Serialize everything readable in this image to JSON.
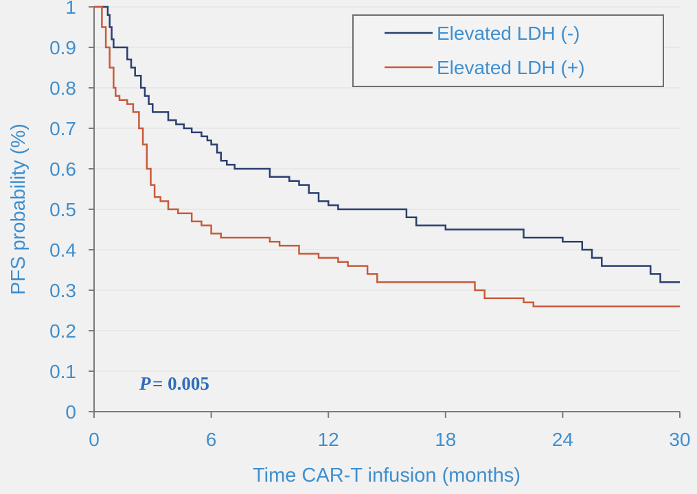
{
  "chart_data": {
    "type": "line",
    "xlabel": "Time CAR-T infusion (months)",
    "ylabel": "PFS probability (%)",
    "xlim": [
      0,
      30
    ],
    "ylim": [
      0,
      1
    ],
    "xticks": [
      "0",
      "6",
      "12",
      "18",
      "24",
      "30"
    ],
    "yticks": [
      "0",
      "0.1",
      "0.2",
      "0.3",
      "0.4",
      "0.5",
      "0.6",
      "0.7",
      "0.8",
      "0.9",
      "1"
    ],
    "annotation_p": "P",
    "annotation_value": "= 0.005",
    "legend_position": "top-right",
    "series": [
      {
        "name": "Elevated LDH (-)",
        "color": "#2a3f6e",
        "x": [
          0,
          0.5,
          0.7,
          0.8,
          0.9,
          1.0,
          1.1,
          1.2,
          1.7,
          1.9,
          2.1,
          2.4,
          2.6,
          2.8,
          3.0,
          3.3,
          3.8,
          4.2,
          4.6,
          5.0,
          5.5,
          5.8,
          6.0,
          6.3,
          6.5,
          6.8,
          7.2,
          8.0,
          9.0,
          10.0,
          10.5,
          11.0,
          11.5,
          12.0,
          12.5,
          13.5,
          14.5,
          15.5,
          16.0,
          16.5,
          18.0,
          19.0,
          20.0,
          21.5,
          22.0,
          23.0,
          24.0,
          25.0,
          25.5,
          26.0,
          27.5,
          28.5,
          29.0,
          30.0
        ],
        "y": [
          1.0,
          1.0,
          0.98,
          0.95,
          0.92,
          0.9,
          0.9,
          0.9,
          0.87,
          0.85,
          0.83,
          0.8,
          0.78,
          0.76,
          0.74,
          0.74,
          0.72,
          0.71,
          0.7,
          0.69,
          0.68,
          0.67,
          0.66,
          0.64,
          0.62,
          0.61,
          0.6,
          0.6,
          0.58,
          0.57,
          0.56,
          0.54,
          0.52,
          0.51,
          0.5,
          0.5,
          0.5,
          0.5,
          0.48,
          0.46,
          0.45,
          0.45,
          0.45,
          0.45,
          0.43,
          0.43,
          0.42,
          0.4,
          0.38,
          0.36,
          0.36,
          0.34,
          0.32,
          0.32
        ]
      },
      {
        "name": "Elevated LDH (+)",
        "color": "#c85a3a",
        "x": [
          0,
          0.4,
          0.6,
          0.8,
          1.0,
          1.1,
          1.3,
          1.7,
          2.0,
          2.3,
          2.5,
          2.7,
          2.9,
          3.1,
          3.4,
          3.8,
          4.3,
          5.0,
          5.5,
          6.0,
          6.5,
          7.0,
          8.0,
          9.0,
          9.5,
          10.5,
          11.5,
          12.0,
          12.5,
          13.0,
          14.0,
          14.5,
          15.0,
          17.0,
          19.0,
          19.5,
          20.0,
          21.0,
          22.0,
          22.5,
          24.0,
          26.0,
          28.0,
          30.0
        ],
        "y": [
          1.0,
          0.95,
          0.9,
          0.85,
          0.8,
          0.78,
          0.77,
          0.76,
          0.74,
          0.7,
          0.66,
          0.6,
          0.56,
          0.53,
          0.52,
          0.5,
          0.49,
          0.47,
          0.46,
          0.44,
          0.43,
          0.43,
          0.43,
          0.42,
          0.41,
          0.39,
          0.38,
          0.38,
          0.37,
          0.36,
          0.34,
          0.32,
          0.32,
          0.32,
          0.32,
          0.3,
          0.28,
          0.28,
          0.27,
          0.26,
          0.26,
          0.26,
          0.26,
          0.26
        ]
      }
    ]
  }
}
